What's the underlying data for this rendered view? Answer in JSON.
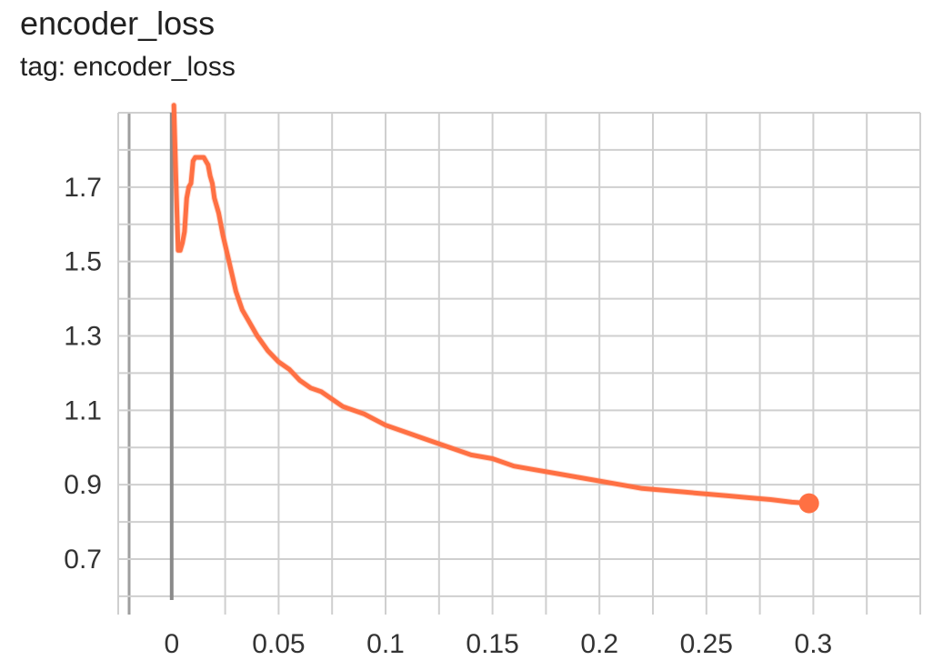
{
  "card": {
    "title": "encoder_loss",
    "tag": "tag: encoder_loss"
  },
  "colors": {
    "series": "#ff7043",
    "grid": "#cfcfcf",
    "zero_axis": "#8a8a8a"
  },
  "chart_data": {
    "type": "line",
    "title": "encoder_loss",
    "subtitle": "tag: encoder_loss",
    "xlabel": "",
    "ylabel": "",
    "xlim": [
      -0.025,
      0.35
    ],
    "ylim": [
      0.59,
      1.9
    ],
    "grid": true,
    "legend": "none",
    "x_ticks": [
      {
        "value": 0,
        "label": "0"
      },
      {
        "value": 0.05,
        "label": "0.05"
      },
      {
        "value": 0.1,
        "label": "0.1"
      },
      {
        "value": 0.15,
        "label": "0.15"
      },
      {
        "value": 0.2,
        "label": "0.2"
      },
      {
        "value": 0.25,
        "label": "0.25"
      },
      {
        "value": 0.3,
        "label": "0.3"
      }
    ],
    "y_ticks": [
      {
        "value": 0.7,
        "label": "0.7"
      },
      {
        "value": 0.9,
        "label": "0.9"
      },
      {
        "value": 1.1,
        "label": "1.1"
      },
      {
        "value": 1.3,
        "label": "1.3"
      },
      {
        "value": 1.5,
        "label": "1.5"
      },
      {
        "value": 1.7,
        "label": "1.7"
      }
    ],
    "series": [
      {
        "x": [
          0.001,
          0.002,
          0.003,
          0.004,
          0.005,
          0.006,
          0.007,
          0.008,
          0.009,
          0.01,
          0.011,
          0.012,
          0.013,
          0.014,
          0.015,
          0.016,
          0.017,
          0.018,
          0.019,
          0.02,
          0.022,
          0.024,
          0.026,
          0.028,
          0.03,
          0.033,
          0.036,
          0.04,
          0.045,
          0.05,
          0.055,
          0.06,
          0.065,
          0.07,
          0.075,
          0.08,
          0.09,
          0.1,
          0.11,
          0.12,
          0.13,
          0.14,
          0.15,
          0.16,
          0.17,
          0.18,
          0.19,
          0.2,
          0.21,
          0.22,
          0.23,
          0.24,
          0.25,
          0.26,
          0.27,
          0.28,
          0.29,
          0.298
        ],
        "y": [
          1.92,
          1.72,
          1.53,
          1.53,
          1.55,
          1.58,
          1.67,
          1.7,
          1.71,
          1.77,
          1.78,
          1.78,
          1.78,
          1.78,
          1.78,
          1.77,
          1.76,
          1.73,
          1.71,
          1.67,
          1.63,
          1.57,
          1.52,
          1.47,
          1.42,
          1.37,
          1.34,
          1.3,
          1.26,
          1.23,
          1.21,
          1.18,
          1.16,
          1.15,
          1.13,
          1.11,
          1.09,
          1.06,
          1.04,
          1.02,
          1.0,
          0.98,
          0.97,
          0.95,
          0.94,
          0.93,
          0.92,
          0.91,
          0.9,
          0.89,
          0.885,
          0.88,
          0.875,
          0.87,
          0.865,
          0.86,
          0.853,
          0.85
        ]
      }
    ]
  }
}
